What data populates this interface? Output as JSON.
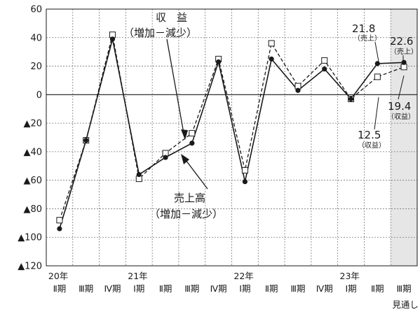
{
  "chart_data": {
    "type": "line",
    "ylim": [
      -120,
      60
    ],
    "yticks": [
      60,
      40,
      20,
      0,
      -20,
      -40,
      -60,
      -80,
      -100,
      -120
    ],
    "ytick_labels": [
      "60",
      "40",
      "20",
      "0",
      "▲20",
      "▲40",
      "▲60",
      "▲80",
      "▲100",
      "▲120"
    ],
    "categories": [
      "Ⅱ期",
      "Ⅲ期",
      "Ⅳ期",
      "Ⅰ期",
      "Ⅱ期",
      "Ⅲ期",
      "Ⅳ期",
      "Ⅰ期",
      "Ⅱ期",
      "Ⅲ期",
      "Ⅳ期",
      "Ⅰ期",
      "Ⅱ期",
      "Ⅲ期"
    ],
    "year_labels": [
      {
        "index": 0,
        "label": "20年"
      },
      {
        "index": 3,
        "label": "21年"
      },
      {
        "index": 7,
        "label": "22年"
      },
      {
        "index": 11,
        "label": "23年"
      }
    ],
    "forecast_label": "見通し",
    "forecast_index": 13,
    "grid": true,
    "series": [
      {
        "key": "sales",
        "style": "solid",
        "marker": "filled-circle",
        "values": [
          -94,
          -32,
          39,
          -56,
          -44,
          -34,
          23,
          -61,
          25,
          3,
          18,
          -3,
          21.8,
          22.6
        ]
      },
      {
        "key": "profit",
        "style": "dashed",
        "marker": "open-square",
        "values": [
          -88,
          -32,
          42,
          -59,
          -41,
          -27,
          25,
          -53,
          36,
          6,
          24,
          -3,
          12.5,
          19.4
        ]
      }
    ],
    "annotations": {
      "profit_title": "収　益",
      "profit_sub": "（増加－減少）",
      "sales_title": "売上高",
      "sales_sub": "（増加－減少）",
      "v1": "21.8",
      "v1_sub": "（売上）",
      "v2": "22.6",
      "v2_sub": "（売上）",
      "v3": "19.4",
      "v3_sub": "（収益）",
      "v4": "12.5",
      "v4_sub": "（収益）"
    }
  }
}
